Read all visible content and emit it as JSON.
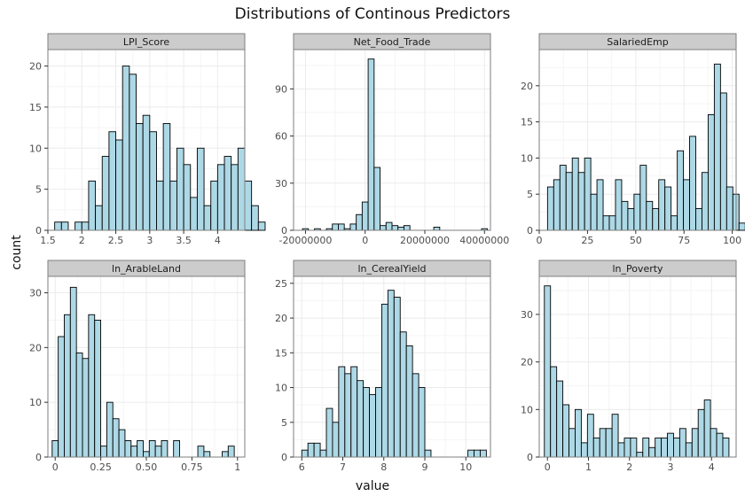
{
  "title": "Distributions of Continous Predictors",
  "xlabel": "value",
  "ylabel": "count",
  "colors": {
    "bar_fill": "#add8e6",
    "bar_stroke": "#000000",
    "strip_fill": "#cccccc",
    "grid_major": "#ebebeb",
    "grid_minor": "#f5f5f5",
    "panel_border": "#7f7f7f"
  },
  "chart_data": [
    {
      "type": "bar",
      "name": "LPI_Score",
      "xlim": [
        1.5,
        4.4
      ],
      "ylim": [
        0,
        22
      ],
      "bin_start": 1.6,
      "bin_width": 0.1,
      "values": [
        1,
        1,
        0,
        1,
        1,
        6,
        3,
        9,
        12,
        11,
        20,
        19,
        13,
        14,
        12,
        6,
        13,
        6,
        10,
        8,
        4,
        10,
        3,
        6,
        8,
        9,
        8,
        10,
        6,
        3,
        1
      ],
      "xticks": [
        1.5,
        2,
        2.5,
        3,
        3.5,
        4
      ],
      "xtick_labels": [
        "1.5",
        "2",
        "2.5",
        "3",
        "3.5",
        "4"
      ],
      "yticks": [
        0,
        5,
        10,
        15,
        20
      ],
      "ytick_labels": [
        "0",
        "5",
        "10",
        "15",
        "20"
      ],
      "grid": true
    },
    {
      "type": "bar",
      "name": "Net_Food_Trade",
      "xlim": [
        -24000000,
        42000000
      ],
      "ylim": [
        0,
        115
      ],
      "bin_start": -21000000,
      "bin_width": 2000000,
      "values": [
        1,
        0,
        1,
        0,
        1,
        4,
        4,
        1,
        4,
        10,
        18,
        109,
        40,
        3,
        5,
        3,
        2,
        3,
        0,
        0,
        0,
        0,
        2,
        0,
        0,
        0,
        0,
        0,
        0,
        0,
        1
      ],
      "xticks": [
        -20000000,
        0,
        20000000,
        40000000
      ],
      "xtick_labels": [
        "-20000000",
        "0",
        "20000000",
        "40000000"
      ],
      "yticks": [
        0,
        30,
        60,
        90
      ],
      "ytick_labels": [
        "0",
        "30",
        "60",
        "90"
      ],
      "grid": true
    },
    {
      "type": "bar",
      "name": "SalariedEmp",
      "xlim": [
        0,
        102
      ],
      "ylim": [
        0,
        25
      ],
      "bin_start": 4.3,
      "bin_width": 3.2,
      "values": [
        6,
        7,
        9,
        8,
        10,
        8,
        10,
        5,
        7,
        2,
        2,
        7,
        4,
        3,
        5,
        9,
        4,
        3,
        7,
        6,
        2,
        11,
        7,
        13,
        3,
        8,
        16,
        23,
        19,
        6,
        5,
        1
      ],
      "xticks": [
        0,
        25,
        50,
        75,
        100
      ],
      "xtick_labels": [
        "0",
        "25",
        "50",
        "75",
        "100"
      ],
      "yticks": [
        0,
        5,
        10,
        15,
        20
      ],
      "ytick_labels": [
        "0",
        "5",
        "10",
        "15",
        "20"
      ],
      "grid": true
    },
    {
      "type": "bar",
      "name": "ln_ArableLand",
      "xlim": [
        -0.04,
        1.04
      ],
      "ylim": [
        0,
        33
      ],
      "bin_start": -0.0167,
      "bin_width": 0.0333,
      "values": [
        3,
        22,
        26,
        31,
        19,
        18,
        26,
        25,
        2,
        10,
        7,
        5,
        3,
        2,
        3,
        1,
        3,
        2,
        3,
        0,
        3,
        0,
        0,
        0,
        2,
        1,
        0,
        0,
        1,
        2
      ],
      "xticks": [
        0,
        0.25,
        0.5,
        0.75,
        1
      ],
      "xtick_labels": [
        "0",
        "0.25",
        "0.50",
        "0.75",
        "1"
      ],
      "yticks": [
        0,
        10,
        20,
        30
      ],
      "ytick_labels": [
        "0",
        "10",
        "20",
        "30"
      ],
      "grid": true
    },
    {
      "type": "bar",
      "name": "ln_CerealYield",
      "xlim": [
        5.8,
        10.6
      ],
      "ylim": [
        0,
        26
      ],
      "bin_start": 6.0,
      "bin_width": 0.15,
      "values": [
        1,
        2,
        2,
        1,
        7,
        5,
        13,
        12,
        13,
        11,
        10,
        9,
        10,
        22,
        24,
        23,
        18,
        16,
        12,
        10,
        1,
        0,
        0,
        0,
        0,
        0,
        0,
        1,
        1,
        1
      ],
      "xticks": [
        6,
        7,
        8,
        9,
        10
      ],
      "xtick_labels": [
        "6",
        "7",
        "8",
        "9",
        "10"
      ],
      "yticks": [
        0,
        5,
        10,
        15,
        20,
        25
      ],
      "ytick_labels": [
        "0",
        "5",
        "10",
        "15",
        "20",
        "25"
      ],
      "grid": true
    },
    {
      "type": "bar",
      "name": "ln_Poverty",
      "xlim": [
        -0.2,
        4.6
      ],
      "ylim": [
        0,
        38
      ],
      "bin_start": -0.075,
      "bin_width": 0.15,
      "values": [
        36,
        19,
        16,
        11,
        6,
        10,
        3,
        9,
        4,
        6,
        6,
        9,
        3,
        4,
        4,
        1,
        4,
        2,
        4,
        4,
        5,
        4,
        6,
        3,
        6,
        10,
        12,
        6,
        5,
        4
      ],
      "xticks": [
        0,
        1,
        2,
        3,
        4
      ],
      "xtick_labels": [
        "0",
        "1",
        "2",
        "3",
        "4"
      ],
      "yticks": [
        0,
        10,
        20,
        30
      ],
      "ytick_labels": [
        "0",
        "10",
        "20",
        "30"
      ],
      "grid": true
    }
  ]
}
